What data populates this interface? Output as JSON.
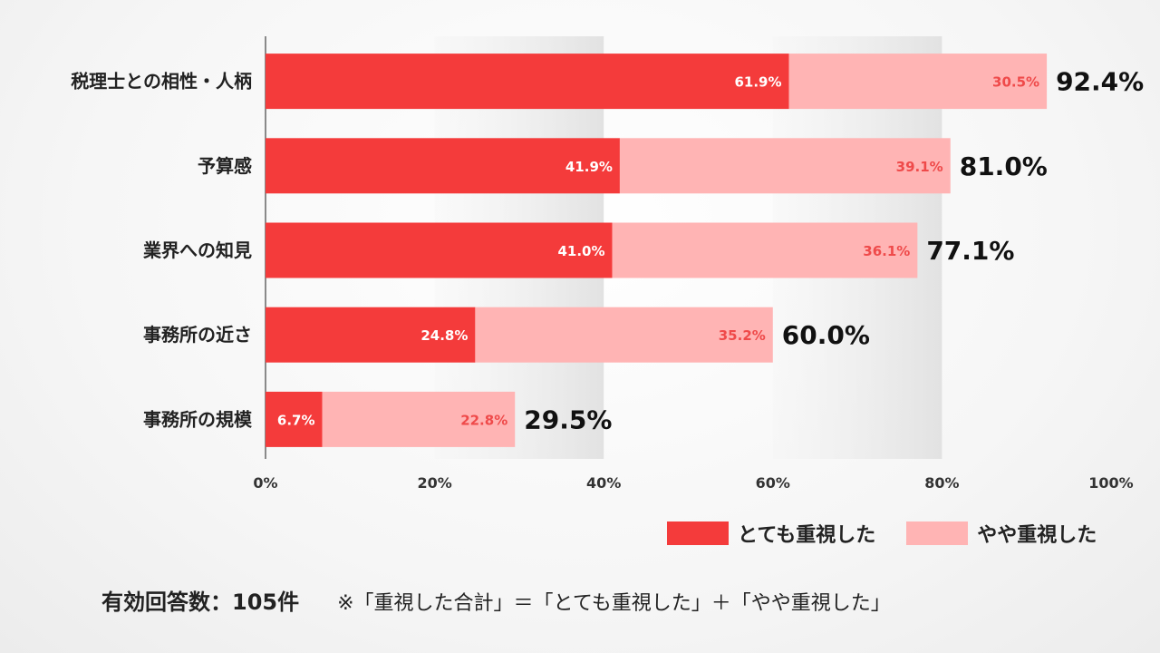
{
  "chart_data": {
    "type": "bar",
    "orientation": "horizontal",
    "stacked": true,
    "categories": [
      "税理士との相性・人柄",
      "予算感",
      "業界への知見",
      "事務所の近さ",
      "事務所の規模"
    ],
    "series": [
      {
        "name": "とても重視した",
        "color": "#f43b3b",
        "values": [
          61.9,
          41.9,
          41.0,
          24.8,
          6.7
        ],
        "labels": [
          "61.9%",
          "41.9%",
          "41.0%",
          "24.8%",
          "6.7%"
        ]
      },
      {
        "name": "やや重視した",
        "color": "#ffb4b4",
        "values": [
          30.5,
          39.1,
          36.1,
          35.2,
          22.8
        ],
        "labels": [
          "30.5%",
          "39.1%",
          "36.1%",
          "35.2%",
          "22.8%"
        ]
      }
    ],
    "totals": [
      92.4,
      81.0,
      77.1,
      60.0,
      29.5
    ],
    "total_labels": [
      "92.4%",
      "81.0%",
      "77.1%",
      "60.0%",
      "29.5%"
    ],
    "xlim": [
      0,
      100
    ],
    "xticks": [
      "0%",
      "20%",
      "40%",
      "60%",
      "80%",
      "100%"
    ],
    "legend_position": "bottom-right"
  },
  "footer": {
    "count": "有効回答数：105件",
    "note": "※「重視した合計」＝「とても重視した」＋「やや重視した」"
  }
}
